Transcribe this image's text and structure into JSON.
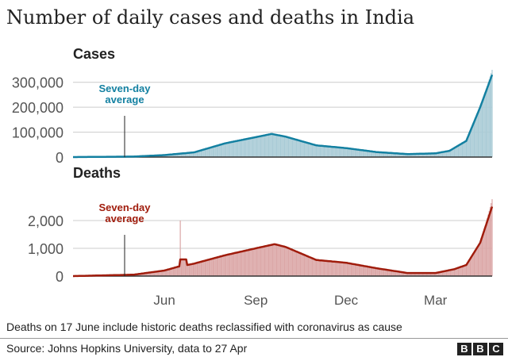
{
  "title": "Number of daily cases and deaths in India",
  "footnote": "Deaths on 17 June include historic deaths reclassified with coronavirus as cause",
  "source": "Source: Johns Hopkins University, data to 27 Apr",
  "logo": [
    "B",
    "B",
    "C"
  ],
  "chart_data": [
    {
      "type": "bar+line",
      "title": "Cases",
      "annotation": "Seven-day average",
      "annotation_lines": [
        "Seven-day",
        "average"
      ],
      "color_line": "#1380A1",
      "color_bars": "#a9cbd6",
      "yticks": [
        0,
        100000,
        200000,
        300000
      ],
      "ytick_labels": [
        "0",
        "100,000",
        "200,000",
        "300,000"
      ],
      "ylim": [
        0,
        350000
      ],
      "grid": true,
      "seven_day_average": [
        [
          "2020-03-01",
          0
        ],
        [
          "2020-05-01",
          2000
        ],
        [
          "2020-06-01",
          8000
        ],
        [
          "2020-07-01",
          19000
        ],
        [
          "2020-08-01",
          55000
        ],
        [
          "2020-09-01",
          80000
        ],
        [
          "2020-09-17",
          93000
        ],
        [
          "2020-10-01",
          82000
        ],
        [
          "2020-11-01",
          47000
        ],
        [
          "2020-12-01",
          36000
        ],
        [
          "2021-01-01",
          20000
        ],
        [
          "2021-02-01",
          12000
        ],
        [
          "2021-03-01",
          15000
        ],
        [
          "2021-03-15",
          25000
        ],
        [
          "2021-04-01",
          65000
        ],
        [
          "2021-04-15",
          200000
        ],
        [
          "2021-04-27",
          330000
        ]
      ],
      "daily_peak": [
        [
          "2021-04-27",
          350000
        ]
      ]
    },
    {
      "type": "bar+line",
      "title": "Deaths",
      "annotation": "Seven-day average",
      "annotation_lines": [
        "Seven-day",
        "average"
      ],
      "color_line": "#A01C0C",
      "color_bars": "#dba7a7",
      "yticks": [
        0,
        1000,
        2000
      ],
      "ytick_labels": [
        "0",
        "1,000",
        "2,000"
      ],
      "ylim": [
        0,
        2800
      ],
      "grid": true,
      "seven_day_average": [
        [
          "2020-03-01",
          0
        ],
        [
          "2020-05-01",
          50
        ],
        [
          "2020-06-01",
          200
        ],
        [
          "2020-06-16",
          350
        ],
        [
          "2020-06-17",
          600
        ],
        [
          "2020-06-23",
          600
        ],
        [
          "2020-06-24",
          400
        ],
        [
          "2020-07-01",
          450
        ],
        [
          "2020-08-01",
          750
        ],
        [
          "2020-09-01",
          1000
        ],
        [
          "2020-09-20",
          1150
        ],
        [
          "2020-10-01",
          1050
        ],
        [
          "2020-11-01",
          580
        ],
        [
          "2020-12-01",
          480
        ],
        [
          "2021-01-01",
          280
        ],
        [
          "2021-02-01",
          110
        ],
        [
          "2021-03-01",
          110
        ],
        [
          "2021-03-20",
          250
        ],
        [
          "2021-04-01",
          400
        ],
        [
          "2021-04-15",
          1200
        ],
        [
          "2021-04-27",
          2500
        ]
      ],
      "daily_peak": [
        [
          "2020-06-17",
          2000
        ],
        [
          "2021-04-27",
          2770
        ]
      ]
    }
  ],
  "xaxis": {
    "domain": [
      "2020-03-01",
      "2021-04-27"
    ],
    "ticks": [
      [
        "2020-06-01",
        "Jun"
      ],
      [
        "2020-09-01",
        "Sep"
      ],
      [
        "2020-12-01",
        "Dec"
      ],
      [
        "2021-03-01",
        "Mar"
      ]
    ]
  }
}
